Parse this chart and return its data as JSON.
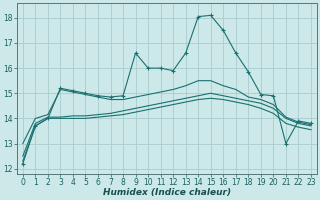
{
  "xlabel": "Humidex (Indice chaleur)",
  "bg_color": "#cce8e8",
  "grid_color": "#aacccc",
  "line_color": "#1a7070",
  "xlim": [
    -0.5,
    23.5
  ],
  "ylim": [
    11.8,
    18.6
  ],
  "yticks": [
    12,
    13,
    14,
    15,
    16,
    17,
    18
  ],
  "xticks": [
    0,
    1,
    2,
    3,
    4,
    5,
    6,
    7,
    8,
    9,
    10,
    11,
    12,
    13,
    14,
    15,
    16,
    17,
    18,
    19,
    20,
    21,
    22,
    23
  ],
  "line1_x": [
    0,
    1,
    2,
    3,
    4,
    5,
    6,
    7,
    8,
    9,
    10,
    11,
    12,
    13,
    14,
    15,
    16,
    17,
    18,
    19,
    20,
    21,
    22,
    23
  ],
  "line1_y": [
    12.2,
    13.7,
    14.0,
    15.2,
    15.1,
    15.0,
    14.9,
    14.85,
    14.9,
    16.6,
    16.0,
    16.0,
    15.9,
    16.6,
    18.05,
    18.1,
    17.5,
    16.6,
    15.85,
    14.95,
    14.9,
    13.0,
    13.9,
    13.8
  ],
  "line2_x": [
    0,
    1,
    2,
    3,
    4,
    5,
    6,
    7,
    8,
    9,
    10,
    11,
    12,
    13,
    14,
    15,
    16,
    17,
    18,
    19,
    20,
    21,
    22,
    23
  ],
  "line2_y": [
    12.3,
    13.7,
    14.0,
    14.0,
    14.0,
    14.0,
    14.05,
    14.1,
    14.15,
    14.25,
    14.35,
    14.45,
    14.55,
    14.65,
    14.75,
    14.8,
    14.75,
    14.65,
    14.55,
    14.4,
    14.2,
    13.8,
    13.65,
    13.55
  ],
  "line3_x": [
    0,
    1,
    2,
    3,
    4,
    5,
    6,
    7,
    8,
    9,
    10,
    11,
    12,
    13,
    14,
    15,
    16,
    17,
    18,
    19,
    20,
    21,
    22,
    23
  ],
  "line3_y": [
    12.5,
    13.8,
    14.05,
    14.05,
    14.1,
    14.1,
    14.15,
    14.2,
    14.3,
    14.4,
    14.5,
    14.6,
    14.7,
    14.8,
    14.9,
    15.0,
    14.9,
    14.8,
    14.7,
    14.6,
    14.4,
    14.0,
    13.8,
    13.7
  ],
  "line4_x": [
    0,
    1,
    2,
    3,
    4,
    5,
    6,
    7,
    8,
    9,
    10,
    11,
    12,
    13,
    14,
    15,
    16,
    17,
    18,
    19,
    20,
    21,
    22,
    23
  ],
  "line4_y": [
    13.0,
    14.0,
    14.15,
    15.15,
    15.05,
    14.95,
    14.85,
    14.75,
    14.75,
    14.85,
    14.95,
    15.05,
    15.15,
    15.3,
    15.5,
    15.5,
    15.3,
    15.15,
    14.85,
    14.75,
    14.55,
    14.05,
    13.85,
    13.75
  ]
}
